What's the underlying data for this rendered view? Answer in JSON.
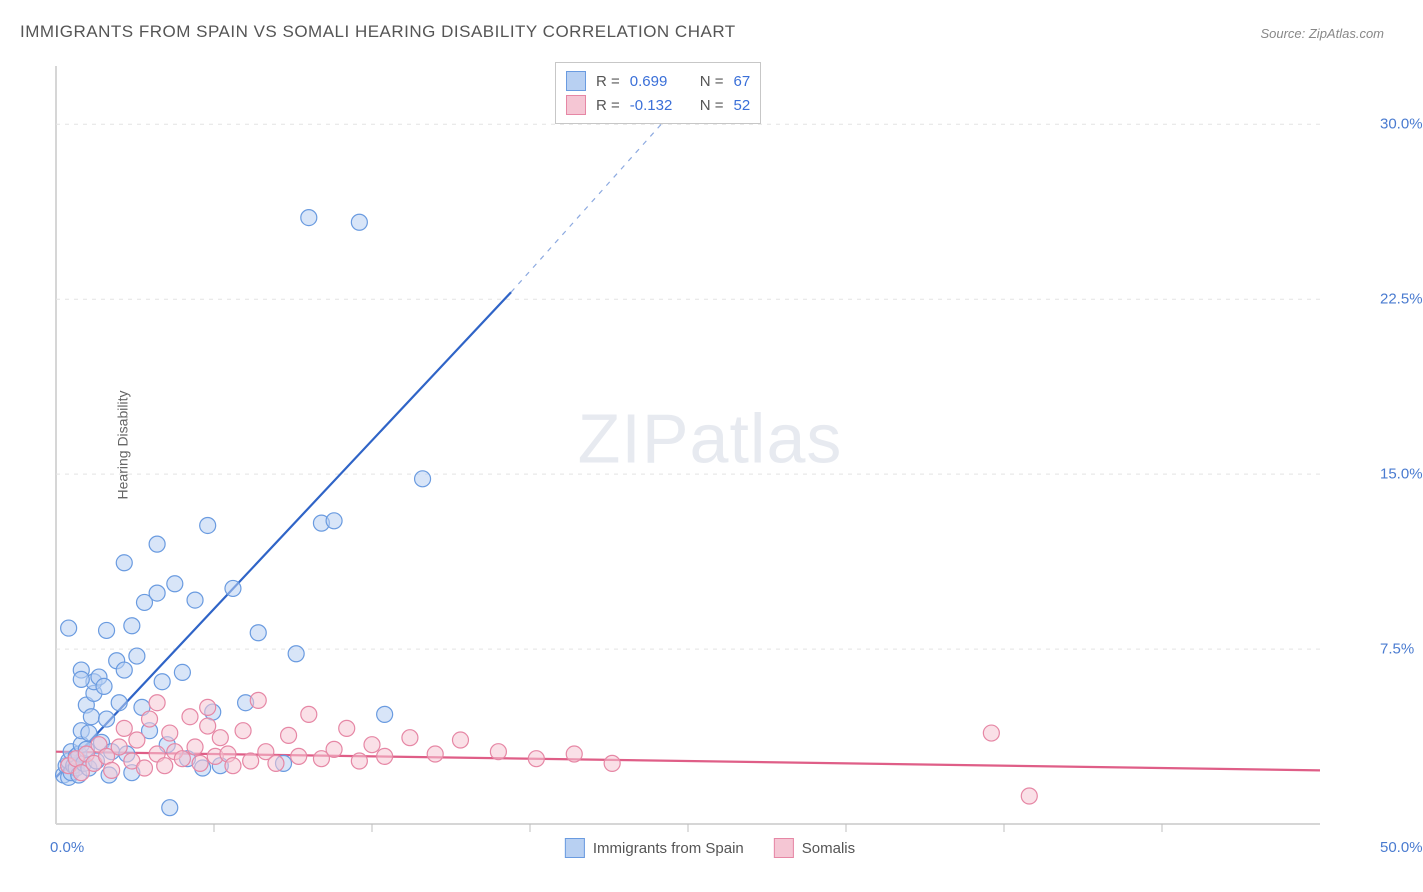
{
  "title": "IMMIGRANTS FROM SPAIN VS SOMALI HEARING DISABILITY CORRELATION CHART",
  "source": "Source: ZipAtlas.com",
  "ylabel": "Hearing Disability",
  "watermark_a": "ZIP",
  "watermark_b": "atlas",
  "chart": {
    "type": "scatter",
    "background_color": "#ffffff",
    "grid_color": "#e3e3e3",
    "axis_color": "#d6d6d6",
    "tick_color": "#bfbfbf",
    "xlim": [
      0,
      50
    ],
    "ylim": [
      0,
      32.5
    ],
    "ytick_start": 7.5,
    "ytick_step": 7.5,
    "ytick_labels": [
      "7.5%",
      "15.0%",
      "22.5%",
      "30.0%"
    ],
    "xtick_start": 0,
    "xtick_step": 6.25,
    "xlabel_0": "0.0%",
    "xlabel_end": "50.0%",
    "marker_radius": 8,
    "marker_opacity": 0.55,
    "line_width": 2.2,
    "label_fontsize": 15,
    "title_fontsize": 17
  },
  "series": [
    {
      "name": "Immigrants from Spain",
      "fill": "#b8d0f2",
      "stroke": "#6a9be0",
      "line_color": "#2f64c7",
      "R": "0.699",
      "N": "67",
      "trend": {
        "x1": 0,
        "y1": 2.0,
        "x2": 18,
        "y2": 22.8,
        "dash_x2": 26,
        "dash_y2": 32.5
      },
      "points": [
        [
          0.3,
          2.1
        ],
        [
          0.4,
          2.5
        ],
        [
          0.5,
          2.0
        ],
        [
          0.5,
          2.7
        ],
        [
          0.6,
          3.1
        ],
        [
          0.6,
          2.2
        ],
        [
          0.7,
          2.5
        ],
        [
          0.8,
          2.9
        ],
        [
          0.8,
          2.4
        ],
        [
          0.9,
          3.0
        ],
        [
          0.9,
          2.1
        ],
        [
          1.0,
          3.4
        ],
        [
          1.0,
          4.0
        ],
        [
          1.1,
          2.6
        ],
        [
          1.2,
          5.1
        ],
        [
          1.2,
          3.2
        ],
        [
          1.3,
          2.4
        ],
        [
          1.4,
          4.6
        ],
        [
          1.5,
          5.6
        ],
        [
          1.5,
          6.1
        ],
        [
          1.6,
          2.7
        ],
        [
          1.7,
          6.3
        ],
        [
          1.8,
          3.5
        ],
        [
          1.9,
          5.9
        ],
        [
          2.0,
          4.5
        ],
        [
          2.0,
          8.3
        ],
        [
          2.2,
          3.1
        ],
        [
          2.4,
          7.0
        ],
        [
          2.5,
          5.2
        ],
        [
          2.7,
          6.6
        ],
        [
          2.8,
          3.0
        ],
        [
          3.0,
          8.5
        ],
        [
          3.0,
          2.2
        ],
        [
          3.2,
          7.2
        ],
        [
          3.4,
          5.0
        ],
        [
          3.5,
          9.5
        ],
        [
          3.7,
          4.0
        ],
        [
          4.0,
          12.0
        ],
        [
          4.2,
          6.1
        ],
        [
          4.4,
          3.4
        ],
        [
          4.7,
          10.3
        ],
        [
          5.0,
          6.5
        ],
        [
          5.2,
          2.8
        ],
        [
          5.5,
          9.6
        ],
        [
          6.0,
          12.8
        ],
        [
          6.2,
          4.8
        ],
        [
          6.5,
          2.5
        ],
        [
          7.0,
          10.1
        ],
        [
          7.5,
          5.2
        ],
        [
          8.0,
          8.2
        ],
        [
          9.0,
          2.6
        ],
        [
          9.5,
          7.3
        ],
        [
          10.0,
          26.0
        ],
        [
          10.5,
          12.9
        ],
        [
          11.0,
          13.0
        ],
        [
          12.0,
          25.8
        ],
        [
          13.0,
          4.7
        ],
        [
          14.5,
          14.8
        ],
        [
          1.0,
          6.6
        ],
        [
          1.0,
          6.2
        ],
        [
          0.5,
          8.4
        ],
        [
          2.7,
          11.2
        ],
        [
          4.0,
          9.9
        ],
        [
          1.3,
          3.9
        ],
        [
          2.1,
          2.1
        ],
        [
          4.5,
          0.7
        ],
        [
          5.8,
          2.4
        ]
      ]
    },
    {
      "name": "Somalis",
      "fill": "#f5c6d4",
      "stroke": "#e687a5",
      "line_color": "#df5e87",
      "R": "-0.132",
      "N": "52",
      "trend": {
        "x1": 0,
        "y1": 3.1,
        "x2": 50,
        "y2": 2.3
      },
      "points": [
        [
          0.5,
          2.5
        ],
        [
          0.8,
          2.8
        ],
        [
          1.0,
          2.2
        ],
        [
          1.2,
          3.0
        ],
        [
          1.5,
          2.6
        ],
        [
          1.7,
          3.4
        ],
        [
          2.0,
          2.9
        ],
        [
          2.2,
          2.3
        ],
        [
          2.5,
          3.3
        ],
        [
          2.7,
          4.1
        ],
        [
          3.0,
          2.7
        ],
        [
          3.2,
          3.6
        ],
        [
          3.5,
          2.4
        ],
        [
          3.7,
          4.5
        ],
        [
          4.0,
          3.0
        ],
        [
          4.3,
          2.5
        ],
        [
          4.5,
          3.9
        ],
        [
          4.7,
          3.1
        ],
        [
          5.0,
          2.8
        ],
        [
          5.3,
          4.6
        ],
        [
          5.5,
          3.3
        ],
        [
          5.7,
          2.6
        ],
        [
          6.0,
          4.2
        ],
        [
          6.3,
          2.9
        ],
        [
          6.5,
          3.7
        ],
        [
          6.8,
          3.0
        ],
        [
          7.0,
          2.5
        ],
        [
          7.4,
          4.0
        ],
        [
          7.7,
          2.7
        ],
        [
          8.0,
          5.3
        ],
        [
          8.3,
          3.1
        ],
        [
          8.7,
          2.6
        ],
        [
          9.2,
          3.8
        ],
        [
          9.6,
          2.9
        ],
        [
          10.0,
          4.7
        ],
        [
          10.5,
          2.8
        ],
        [
          11.0,
          3.2
        ],
        [
          11.5,
          4.1
        ],
        [
          12.0,
          2.7
        ],
        [
          12.5,
          3.4
        ],
        [
          13.0,
          2.9
        ],
        [
          14.0,
          3.7
        ],
        [
          15.0,
          3.0
        ],
        [
          16.0,
          3.6
        ],
        [
          17.5,
          3.1
        ],
        [
          19.0,
          2.8
        ],
        [
          20.5,
          3.0
        ],
        [
          22.0,
          2.6
        ],
        [
          37.0,
          3.9
        ],
        [
          38.5,
          1.2
        ],
        [
          4.0,
          5.2
        ],
        [
          6.0,
          5.0
        ]
      ]
    }
  ],
  "legend_top": {
    "rows": [
      {
        "swatchFill": "#b8d0f2",
        "swatchStroke": "#6a9be0",
        "r_label": "R =",
        "r_val": "0.699",
        "n_label": "N =",
        "n_val": "67"
      },
      {
        "swatchFill": "#f5c6d4",
        "swatchStroke": "#e687a5",
        "r_label": "R =",
        "r_val": "-0.132",
        "n_label": "N =",
        "n_val": "52"
      }
    ]
  },
  "legend_bottom": [
    {
      "fill": "#b8d0f2",
      "stroke": "#6a9be0",
      "label": "Immigrants from Spain"
    },
    {
      "fill": "#f5c6d4",
      "stroke": "#e687a5",
      "label": "Somalis"
    }
  ]
}
